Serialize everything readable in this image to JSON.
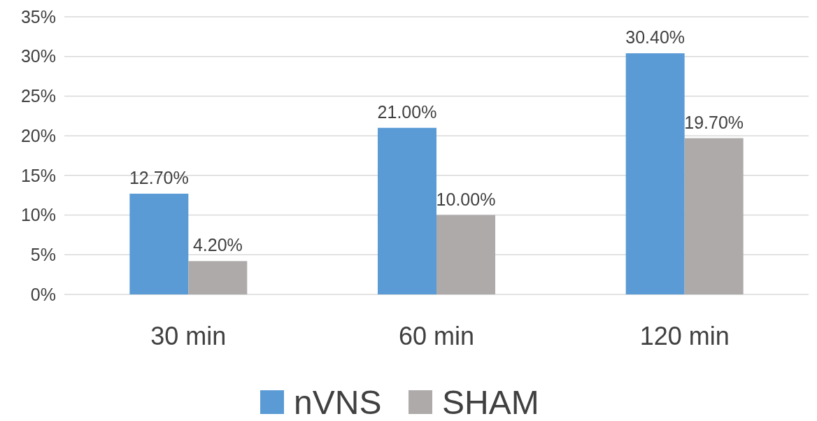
{
  "chart_data": {
    "type": "bar",
    "categories": [
      "30 min",
      "60 min",
      "120 min"
    ],
    "series": [
      {
        "name": "nVNS",
        "color": "#5b9bd5",
        "values": [
          12.7,
          21.0,
          30.4
        ],
        "value_labels": [
          "12.70%",
          "21.00%",
          "30.40%"
        ]
      },
      {
        "name": "SHAM",
        "color": "#aeaaaa",
        "values": [
          4.2,
          10.0,
          19.7
        ],
        "value_labels": [
          "4.20%",
          "10.00%",
          "19.70%"
        ]
      }
    ],
    "ylim": [
      0,
      35
    ],
    "yticks": [
      {
        "value": 0,
        "label": "0%"
      },
      {
        "value": 5,
        "label": "5%"
      },
      {
        "value": 10,
        "label": "10%"
      },
      {
        "value": 15,
        "label": "15%"
      },
      {
        "value": 20,
        "label": "20%"
      },
      {
        "value": 25,
        "label": "25%"
      },
      {
        "value": 30,
        "label": "30%"
      },
      {
        "value": 35,
        "label": "35%"
      }
    ],
    "grid": "y",
    "legend": "bottom"
  }
}
